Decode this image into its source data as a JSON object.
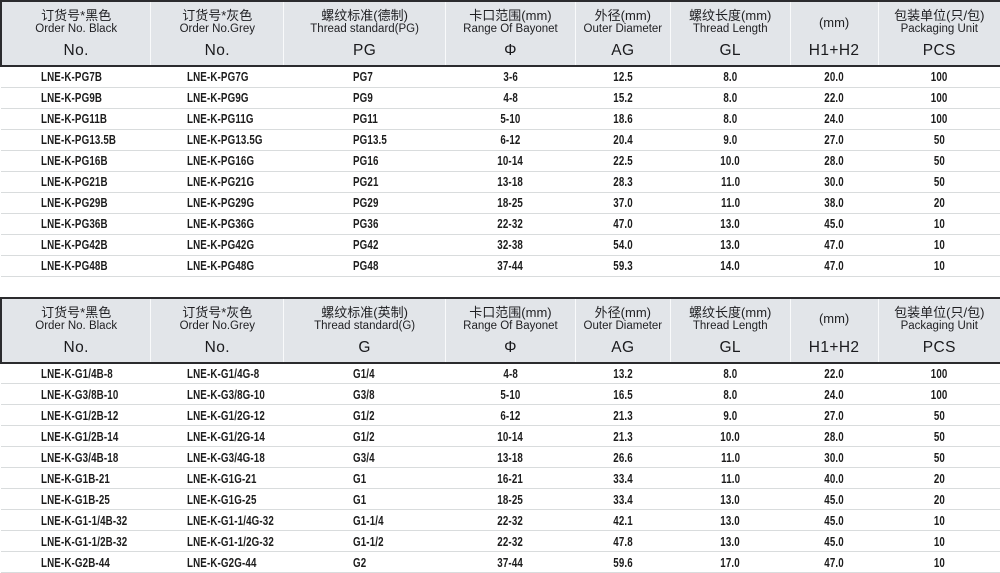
{
  "page": {
    "colors": {
      "header_bg": "#e2e5e9",
      "border_dark": "#2b2b2e",
      "row_line": "#d9dcdd",
      "text": "#1c1c1c"
    }
  },
  "tables": [
    {
      "name": "pg-metric-table",
      "columns": [
        {
          "cn": "订货号*黑色",
          "en": "Order No. Black",
          "code": "No."
        },
        {
          "cn": "订货号*灰色",
          "en": "Order No.Grey",
          "code": "No."
        },
        {
          "cn": "螺纹标准(德制)",
          "en": "Thread standard(PG)",
          "code": "PG"
        },
        {
          "cn": "卡口范围(mm)",
          "en": "Range Of Bayonet",
          "code": "Φ"
        },
        {
          "cn": "外径(mm)",
          "en": "Outer Diameter",
          "code": "AG"
        },
        {
          "cn": "螺纹长度(mm)",
          "en": "Thread Length",
          "code": "GL"
        },
        {
          "cn": "(mm)",
          "en": "",
          "code": "H1+H2"
        },
        {
          "cn": "包装单位(只/包)",
          "en": "Packaging Unit",
          "code": "PCS"
        }
      ],
      "rows": [
        [
          "LNE-K-PG7B",
          "LNE-K-PG7G",
          "PG7",
          "3-6",
          "12.5",
          "8.0",
          "20.0",
          "100"
        ],
        [
          "LNE-K-PG9B",
          "LNE-K-PG9G",
          "PG9",
          "4-8",
          "15.2",
          "8.0",
          "22.0",
          "100"
        ],
        [
          "LNE-K-PG11B",
          "LNE-K-PG11G",
          "PG11",
          "5-10",
          "18.6",
          "8.0",
          "24.0",
          "100"
        ],
        [
          "LNE-K-PG13.5B",
          "LNE-K-PG13.5G",
          "PG13.5",
          "6-12",
          "20.4",
          "9.0",
          "27.0",
          "50"
        ],
        [
          "LNE-K-PG16B",
          "LNE-K-PG16G",
          "PG16",
          "10-14",
          "22.5",
          "10.0",
          "28.0",
          "50"
        ],
        [
          "LNE-K-PG21B",
          "LNE-K-PG21G",
          "PG21",
          "13-18",
          "28.3",
          "11.0",
          "30.0",
          "50"
        ],
        [
          "LNE-K-PG29B",
          "LNE-K-PG29G",
          "PG29",
          "18-25",
          "37.0",
          "11.0",
          "38.0",
          "20"
        ],
        [
          "LNE-K-PG36B",
          "LNE-K-PG36G",
          "PG36",
          "22-32",
          "47.0",
          "13.0",
          "45.0",
          "10"
        ],
        [
          "LNE-K-PG42B",
          "LNE-K-PG42G",
          "PG42",
          "32-38",
          "54.0",
          "13.0",
          "47.0",
          "10"
        ],
        [
          "LNE-K-PG48B",
          "LNE-K-PG48G",
          "PG48",
          "37-44",
          "59.3",
          "14.0",
          "47.0",
          "10"
        ]
      ]
    },
    {
      "name": "g-imperial-table",
      "columns": [
        {
          "cn": "订货号*黑色",
          "en": "Order No. Black",
          "code": "No."
        },
        {
          "cn": "订货号*灰色",
          "en": "Order No.Grey",
          "code": "No."
        },
        {
          "cn": "螺纹标准(英制)",
          "en": "Thread standard(G)",
          "code": "G"
        },
        {
          "cn": "卡口范围(mm)",
          "en": "Range Of Bayonet",
          "code": "Φ"
        },
        {
          "cn": "外径(mm)",
          "en": "Outer Diameter",
          "code": "AG"
        },
        {
          "cn": "螺纹长度(mm)",
          "en": "Thread Length",
          "code": "GL"
        },
        {
          "cn": "(mm)",
          "en": "",
          "code": "H1+H2"
        },
        {
          "cn": "包装单位(只/包)",
          "en": "Packaging Unit",
          "code": "PCS"
        }
      ],
      "rows": [
        [
          "LNE-K-G1/4B-8",
          "LNE-K-G1/4G-8",
          "G1/4",
          "4-8",
          "13.2",
          "8.0",
          "22.0",
          "100"
        ],
        [
          "LNE-K-G3/8B-10",
          "LNE-K-G3/8G-10",
          "G3/8",
          "5-10",
          "16.5",
          "8.0",
          "24.0",
          "100"
        ],
        [
          "LNE-K-G1/2B-12",
          "LNE-K-G1/2G-12",
          "G1/2",
          "6-12",
          "21.3",
          "9.0",
          "27.0",
          "50"
        ],
        [
          "LNE-K-G1/2B-14",
          "LNE-K-G1/2G-14",
          "G1/2",
          "10-14",
          "21.3",
          "10.0",
          "28.0",
          "50"
        ],
        [
          "LNE-K-G3/4B-18",
          "LNE-K-G3/4G-18",
          "G3/4",
          "13-18",
          "26.6",
          "11.0",
          "30.0",
          "50"
        ],
        [
          "LNE-K-G1B-21",
          "LNE-K-G1G-21",
          "G1",
          "16-21",
          "33.4",
          "11.0",
          "40.0",
          "20"
        ],
        [
          "LNE-K-G1B-25",
          "LNE-K-G1G-25",
          "G1",
          "18-25",
          "33.4",
          "13.0",
          "45.0",
          "20"
        ],
        [
          "LNE-K-G1-1/4B-32",
          "LNE-K-G1-1/4G-32",
          "G1-1/4",
          "22-32",
          "42.1",
          "13.0",
          "45.0",
          "10"
        ],
        [
          "LNE-K-G1-1/2B-32",
          "LNE-K-G1-1/2G-32",
          "G1-1/2",
          "22-32",
          "47.8",
          "13.0",
          "45.0",
          "10"
        ],
        [
          "LNE-K-G2B-44",
          "LNE-K-G2G-44",
          "G2",
          "37-44",
          "59.6",
          "17.0",
          "47.0",
          "10"
        ]
      ]
    }
  ]
}
